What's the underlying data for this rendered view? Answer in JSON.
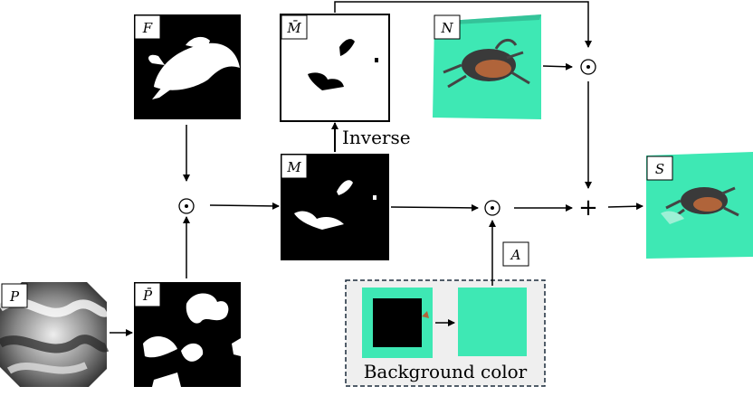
{
  "labels": {
    "f": "F",
    "m_bar": "M̄",
    "n": "N",
    "m": "M",
    "s": "S",
    "a": "A",
    "p": "P",
    "p_bar": "P̄"
  },
  "text": {
    "inverse": "Inverse",
    "background_color": "Background color"
  },
  "operators": {
    "multiply": "⊙",
    "add": "+"
  },
  "colors": {
    "mint": "#3ee8b4",
    "crab_dark": "#3a3a3a",
    "crab_orange": "#b0643a"
  }
}
